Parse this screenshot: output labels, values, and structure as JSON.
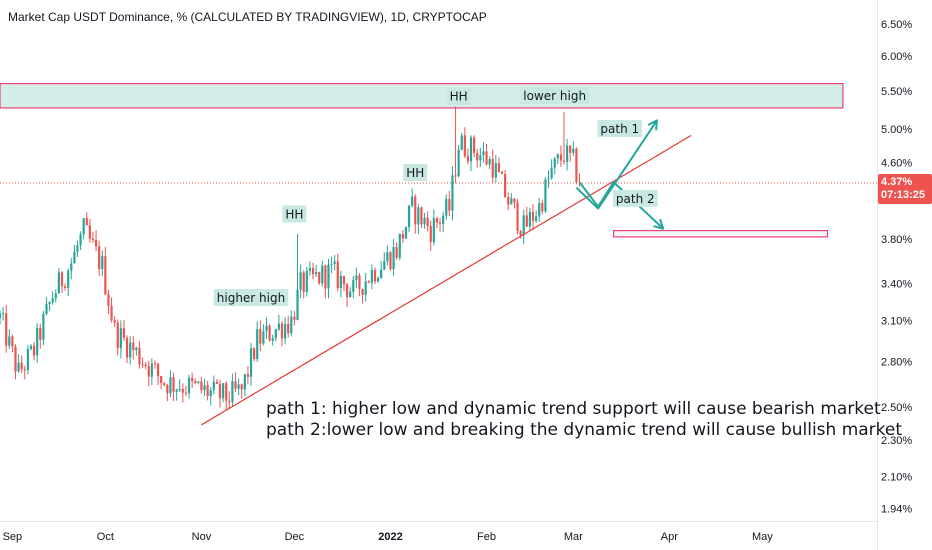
{
  "chart_data": {
    "type": "candlestick",
    "title": "Market Cap USDT Dominance, % (CALCULATED BY TRADINGVIEW), 1D, CRYPTOCAP",
    "y_scale": "log",
    "y_ticks": [
      {
        "value": 6.5,
        "label": "6.50%"
      },
      {
        "value": 6.0,
        "label": "6.00%"
      },
      {
        "value": 5.5,
        "label": "5.50%"
      },
      {
        "value": 5.0,
        "label": "5.00%"
      },
      {
        "value": 4.6,
        "label": "4.60%"
      },
      {
        "value": 3.8,
        "label": "3.80%"
      },
      {
        "value": 3.4,
        "label": "3.40%"
      },
      {
        "value": 3.1,
        "label": "3.10%"
      },
      {
        "value": 2.8,
        "label": "2.80%"
      },
      {
        "value": 2.5,
        "label": "2.50%"
      },
      {
        "value": 2.3,
        "label": "2.30%"
      },
      {
        "value": 2.1,
        "label": "2.10%"
      },
      {
        "value": 1.94,
        "label": "1.94%"
      }
    ],
    "x_ticks": [
      {
        "label": "Sep",
        "bold": false
      },
      {
        "label": "Oct",
        "bold": false
      },
      {
        "label": "Nov",
        "bold": false
      },
      {
        "label": "Dec",
        "bold": false
      },
      {
        "label": "2022",
        "bold": true
      },
      {
        "label": "Feb",
        "bold": false
      },
      {
        "label": "Mar",
        "bold": false
      },
      {
        "label": "Apr",
        "bold": false
      },
      {
        "label": "May",
        "bold": false
      }
    ],
    "x_tick_dates": [
      "2021-09-01",
      "2021-10-01",
      "2021-11-01",
      "2021-12-01",
      "2022-01-01",
      "2022-02-01",
      "2022-03-01",
      "2022-04-01",
      "2022-05-01"
    ],
    "x_range": [
      "2021-08-28",
      "2022-06-07"
    ],
    "y_range": [
      1.88,
      6.9
    ],
    "current_price": {
      "value": 4.37,
      "label": "4.37%",
      "countdown": "07:13:25",
      "color": "#ef5350"
    },
    "colors": {
      "up": "#26a69a",
      "down": "#ef5350",
      "trendline": "#e53935",
      "zone_fill": "#d5eeea",
      "zone_border": "#e91e63",
      "arrow": "#26a69a"
    },
    "anchors": [
      {
        "date": "2021-08-28",
        "close": 3.12
      },
      {
        "date": "2021-09-03",
        "close": 2.72
      },
      {
        "date": "2021-09-08",
        "close": 2.88
      },
      {
        "date": "2021-09-14",
        "close": 3.3
      },
      {
        "date": "2021-09-20",
        "close": 3.58
      },
      {
        "date": "2021-09-24",
        "close": 3.88
      },
      {
        "date": "2021-09-30",
        "close": 3.55
      },
      {
        "date": "2021-10-04",
        "close": 3.02
      },
      {
        "date": "2021-10-11",
        "close": 2.86
      },
      {
        "date": "2021-10-20",
        "close": 2.66
      },
      {
        "date": "2021-10-30",
        "close": 2.62
      },
      {
        "date": "2021-11-09",
        "close": 2.56
      },
      {
        "date": "2021-11-14",
        "close": 2.6
      },
      {
        "date": "2021-11-19",
        "close": 2.95
      },
      {
        "date": "2021-11-26",
        "close": 3.05
      },
      {
        "date": "2021-11-30",
        "close": 3.1
      },
      {
        "date": "2021-12-03",
        "close": 3.38
      },
      {
        "date": "2021-12-08",
        "close": 3.45
      },
      {
        "date": "2021-12-13",
        "close": 3.5
      },
      {
        "date": "2021-12-20",
        "close": 3.33
      },
      {
        "date": "2021-12-28",
        "close": 3.55
      },
      {
        "date": "2022-01-03",
        "close": 3.7
      },
      {
        "date": "2022-01-08",
        "close": 4.1
      },
      {
        "date": "2022-01-14",
        "close": 3.9
      },
      {
        "date": "2022-01-20",
        "close": 4.1
      },
      {
        "date": "2022-01-23",
        "close": 4.82
      },
      {
        "date": "2022-01-28",
        "close": 4.75
      },
      {
        "date": "2022-02-03",
        "close": 4.58
      },
      {
        "date": "2022-02-08",
        "close": 4.18
      },
      {
        "date": "2022-02-13",
        "close": 3.9
      },
      {
        "date": "2022-02-18",
        "close": 4.12
      },
      {
        "date": "2022-02-22",
        "close": 4.5
      },
      {
        "date": "2022-02-26",
        "close": 4.7
      },
      {
        "date": "2022-03-01",
        "close": 4.6
      },
      {
        "date": "2022-03-03",
        "close": 4.37
      }
    ],
    "wick_spikes": [
      {
        "date": "2021-09-24",
        "high": 3.97
      },
      {
        "date": "2021-12-02",
        "high": 3.85
      },
      {
        "date": "2022-01-22",
        "high": 5.29
      },
      {
        "date": "2022-02-26",
        "high": 5.22
      }
    ],
    "resistance_zone": {
      "from": "2021-08-28",
      "to": "2022-05-27",
      "low": 5.27,
      "high": 5.6
    },
    "target_box": {
      "from": "2022-03-14",
      "to": "2022-05-22",
      "low": 3.82,
      "high": 3.88
    },
    "trendline": {
      "from": {
        "date": "2021-11-01",
        "value": 2.39
      },
      "to": {
        "date": "2022-04-08",
        "value": 4.92
      }
    },
    "path1_arrow": [
      {
        "date": "2022-03-02",
        "value": 4.32
      },
      {
        "date": "2022-03-09",
        "value": 4.1
      },
      {
        "date": "2022-03-28",
        "value": 5.11
      }
    ],
    "path2_arrow": [
      {
        "date": "2022-03-03",
        "value": 4.38
      },
      {
        "date": "2022-03-09",
        "value": 4.12
      },
      {
        "date": "2022-03-14",
        "value": 4.38
      },
      {
        "date": "2022-03-30",
        "value": 3.9
      }
    ]
  },
  "annotations": [
    {
      "text": "HH",
      "date": "2022-01-23",
      "value": 5.42
    },
    {
      "text": "lower high",
      "date": "2022-02-23",
      "value": 5.43
    },
    {
      "text": "HH",
      "date": "2022-01-09",
      "value": 4.48
    },
    {
      "text": "HH",
      "date": "2021-12-01",
      "value": 4.04
    },
    {
      "text": "higher high",
      "date": "2021-11-17",
      "value": 3.28
    },
    {
      "text": "path 1",
      "date": "2022-03-16",
      "value": 5.0
    },
    {
      "text": "path 2",
      "date": "2022-03-21",
      "value": 4.2
    }
  ],
  "notes": [
    "path 1: higher low and dynamic trend support will cause bearish market",
    "path 2:lower low and breaking the dynamic trend will cause bullish market"
  ]
}
